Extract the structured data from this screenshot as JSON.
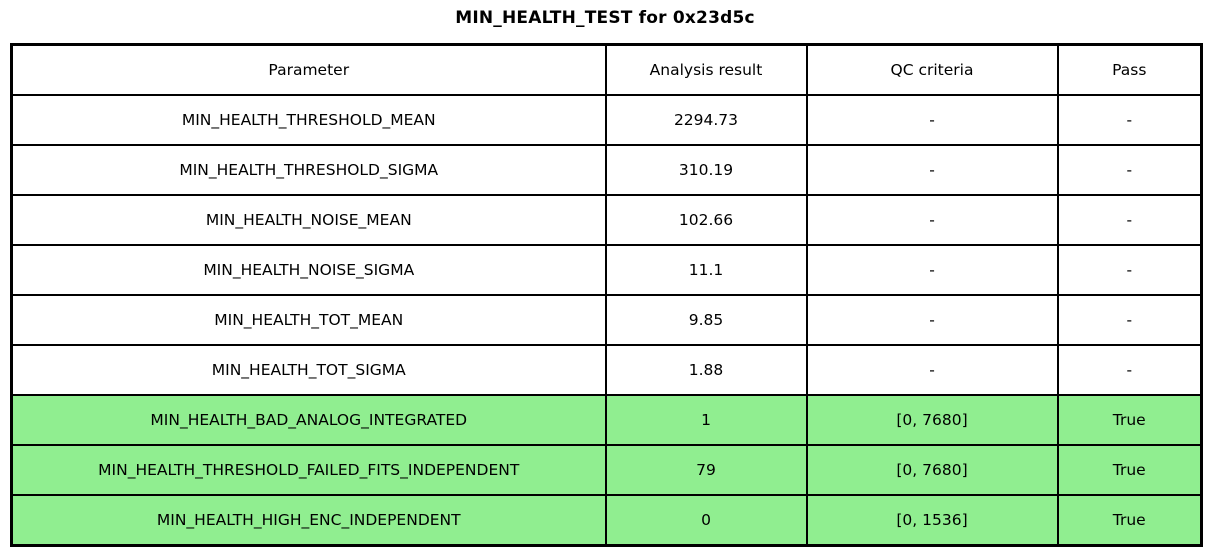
{
  "title": "MIN_HEALTH_TEST for 0x23d5c",
  "colors": {
    "pass_green": "#90EE90",
    "border": "#000000",
    "text": "#000000",
    "background": "#FFFFFF"
  },
  "table": {
    "headers": [
      "Parameter",
      "Analysis result",
      "QC criteria",
      "Pass"
    ],
    "rows": [
      {
        "parameter": "MIN_HEALTH_THRESHOLD_MEAN",
        "result": "2294.73",
        "qc": "-",
        "pass": "-",
        "highlight": false
      },
      {
        "parameter": "MIN_HEALTH_THRESHOLD_SIGMA",
        "result": "310.19",
        "qc": "-",
        "pass": "-",
        "highlight": false
      },
      {
        "parameter": "MIN_HEALTH_NOISE_MEAN",
        "result": "102.66",
        "qc": "-",
        "pass": "-",
        "highlight": false
      },
      {
        "parameter": "MIN_HEALTH_NOISE_SIGMA",
        "result": "11.1",
        "qc": "-",
        "pass": "-",
        "highlight": false
      },
      {
        "parameter": "MIN_HEALTH_TOT_MEAN",
        "result": "9.85",
        "qc": "-",
        "pass": "-",
        "highlight": false
      },
      {
        "parameter": "MIN_HEALTH_TOT_SIGMA",
        "result": "1.88",
        "qc": "-",
        "pass": "-",
        "highlight": false
      },
      {
        "parameter": "MIN_HEALTH_BAD_ANALOG_INTEGRATED",
        "result": "1",
        "qc": "[0, 7680]",
        "pass": "True",
        "highlight": true
      },
      {
        "parameter": "MIN_HEALTH_THRESHOLD_FAILED_FITS_INDEPENDENT",
        "result": "79",
        "qc": "[0, 7680]",
        "pass": "True",
        "highlight": true
      },
      {
        "parameter": "MIN_HEALTH_HIGH_ENC_INDEPENDENT",
        "result": "0",
        "qc": "[0, 1536]",
        "pass": "True",
        "highlight": true
      }
    ]
  },
  "chart_data": {
    "type": "table",
    "title": "MIN_HEALTH_TEST for 0x23d5c",
    "columns": [
      "Parameter",
      "Analysis result",
      "QC criteria",
      "Pass"
    ],
    "rows": [
      [
        "MIN_HEALTH_THRESHOLD_MEAN",
        "2294.73",
        "-",
        "-"
      ],
      [
        "MIN_HEALTH_THRESHOLD_SIGMA",
        "310.19",
        "-",
        "-"
      ],
      [
        "MIN_HEALTH_NOISE_MEAN",
        "102.66",
        "-",
        "-"
      ],
      [
        "MIN_HEALTH_NOISE_SIGMA",
        "11.1",
        "-",
        "-"
      ],
      [
        "MIN_HEALTH_TOT_MEAN",
        "9.85",
        "-",
        "-"
      ],
      [
        "MIN_HEALTH_TOT_SIGMA",
        "1.88",
        "-",
        "-"
      ],
      [
        "MIN_HEALTH_BAD_ANALOG_INTEGRATED",
        "1",
        "[0, 7680]",
        "True"
      ],
      [
        "MIN_HEALTH_THRESHOLD_FAILED_FITS_INDEPENDENT",
        "79",
        "[0, 7680]",
        "True"
      ],
      [
        "MIN_HEALTH_HIGH_ENC_INDEPENDENT",
        "0",
        "[0, 1536]",
        "True"
      ]
    ],
    "highlighted_row_indices": [
      6,
      7,
      8
    ],
    "highlight_color": "#90EE90",
    "legend_position": "none",
    "grid": true
  }
}
